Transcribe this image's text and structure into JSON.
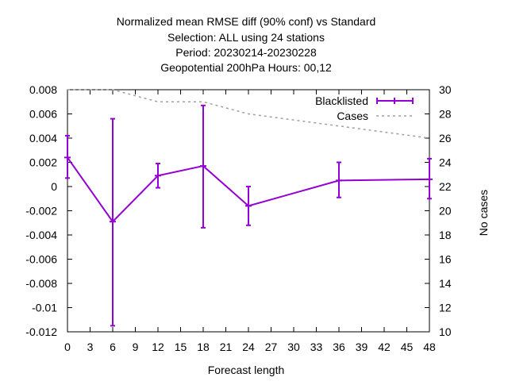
{
  "chart_data": {
    "type": "line",
    "title_lines": [
      "Normalized mean RMSE diff (90% conf) vs Standard",
      "Selection: ALL using    24 stations",
      "Period: 20230214-20230228",
      "Geopotential 200hPa   Hours:  00,12"
    ],
    "xlabel": "Forecast length",
    "ylabel": "",
    "y2label": "No cases",
    "xlim": [
      0,
      48
    ],
    "ylim": [
      -0.012,
      0.008
    ],
    "y2lim": [
      10,
      30
    ],
    "x_ticks": [
      0,
      3,
      6,
      9,
      12,
      15,
      18,
      21,
      24,
      27,
      30,
      33,
      36,
      39,
      42,
      45,
      48
    ],
    "y_ticks": [
      -0.012,
      -0.01,
      -0.008,
      -0.006,
      -0.004,
      -0.002,
      0,
      0.002,
      0.004,
      0.006,
      0.008
    ],
    "y_tick_labels": [
      "-0.012",
      "-0.01",
      "-0.008",
      "-0.006",
      "-0.004",
      "-0.002",
      "0",
      "0.002",
      "0.004",
      "0.006",
      "0.008"
    ],
    "y2_ticks": [
      10,
      12,
      14,
      16,
      18,
      20,
      22,
      24,
      26,
      28,
      30
    ],
    "grid": false,
    "legend_position": "top-right",
    "series": [
      {
        "name": "Blacklisted",
        "axis": "y1",
        "style": "errorbars",
        "color": "#9400d3",
        "x": [
          0,
          6,
          12,
          18,
          24,
          36,
          48
        ],
        "y": [
          0.0024,
          -0.0029,
          0.0009,
          0.0017,
          -0.0016,
          0.0005,
          0.0006
        ],
        "y_low": [
          0.0007,
          -0.0115,
          -0.0001,
          -0.0034,
          -0.0032,
          -0.0009,
          -0.001
        ],
        "y_high": [
          0.0042,
          0.0056,
          0.0019,
          0.0067,
          0.0,
          0.002,
          0.0023
        ]
      },
      {
        "name": "Cases",
        "axis": "y2",
        "style": "dashed",
        "color": "#a0a0a0",
        "x": [
          0,
          6,
          12,
          18,
          24,
          36,
          48
        ],
        "y": [
          30,
          30,
          29,
          29,
          28,
          27,
          26
        ]
      }
    ]
  }
}
